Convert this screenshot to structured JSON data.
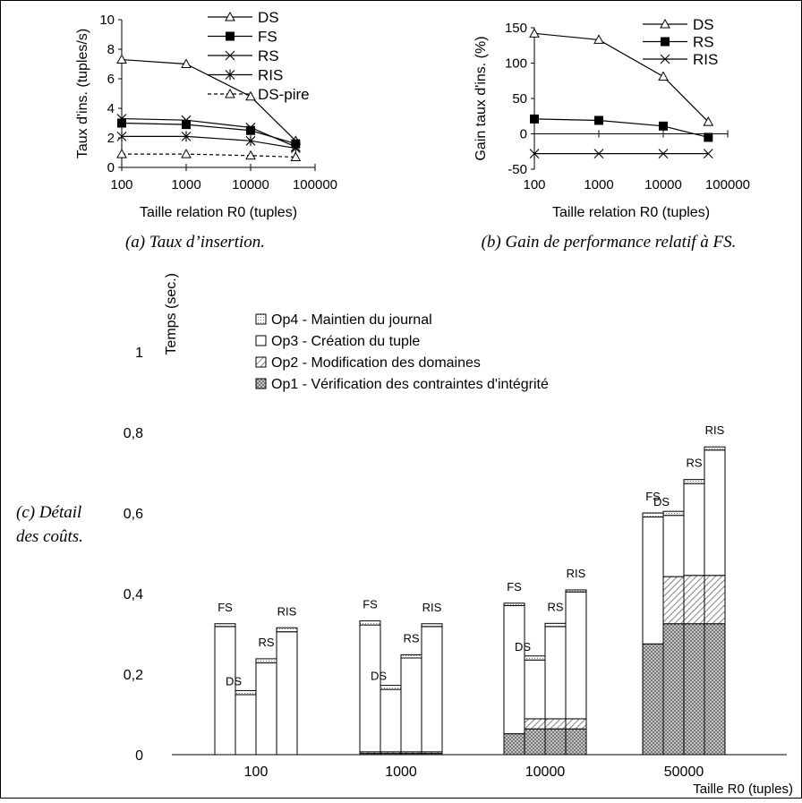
{
  "captions": {
    "a": "(a) Taux d’insertion.",
    "b": "(b) Gain de performance relatif à FS.",
    "c_line1": "(c) Détail",
    "c_line2": "des coûts."
  },
  "chart_data": [
    {
      "id": "a",
      "type": "line",
      "xlabel": "Taille relation R0 (tuples)",
      "ylabel": "Taux d'ins. (tuples/s)",
      "x": [
        100,
        1000,
        10000,
        50000
      ],
      "xticks": [
        "100",
        "1000",
        "10000",
        "100000"
      ],
      "xscale": "log",
      "xlim": [
        100,
        100000
      ],
      "ylim": [
        0,
        10
      ],
      "yticks": [
        "0",
        "2",
        "4",
        "6",
        "8",
        "10"
      ],
      "grid": false,
      "legend_position": "top-right",
      "series": [
        {
          "name": "DS",
          "marker": "triangle",
          "dash": false,
          "values": [
            7.3,
            7.0,
            4.8,
            1.8
          ]
        },
        {
          "name": "FS",
          "marker": "square",
          "dash": false,
          "values": [
            3.0,
            2.9,
            2.5,
            1.6
          ]
        },
        {
          "name": "RS",
          "marker": "x",
          "dash": false,
          "values": [
            3.3,
            3.2,
            2.7,
            1.4
          ]
        },
        {
          "name": "RIS",
          "marker": "star",
          "dash": false,
          "values": [
            2.1,
            2.1,
            1.8,
            1.3
          ]
        },
        {
          "name": "DS-pire",
          "marker": "triangle",
          "dash": true,
          "values": [
            0.9,
            0.9,
            0.8,
            0.7
          ]
        }
      ]
    },
    {
      "id": "b",
      "type": "line",
      "xlabel": "Taille relation R0 (tuples)",
      "ylabel": "Gain taux d'ins. (%)",
      "x": [
        100,
        1000,
        10000,
        50000
      ],
      "xticks": [
        "100",
        "1000",
        "10000",
        "100000"
      ],
      "xscale": "log",
      "xlim": [
        100,
        100000
      ],
      "ylim": [
        -50,
        150
      ],
      "yticks": [
        "-50",
        "0",
        "50",
        "100",
        "150"
      ],
      "grid": false,
      "legend_position": "top-right",
      "series": [
        {
          "name": "DS",
          "marker": "triangle",
          "dash": false,
          "values": [
            142,
            133,
            81,
            17
          ]
        },
        {
          "name": "RS",
          "marker": "square",
          "dash": false,
          "values": [
            21,
            19,
            11,
            -5
          ]
        },
        {
          "name": "RIS",
          "marker": "x",
          "dash": false,
          "values": [
            -28,
            -28,
            -28,
            -28
          ]
        }
      ]
    },
    {
      "id": "c",
      "type": "bar",
      "stacked": true,
      "ylabel": "Temps (sec.)",
      "xlabel": "Taille R0 (tuples)",
      "categories": [
        "100",
        "1000",
        "10000",
        "50000"
      ],
      "bar_labels": [
        "FS",
        "DS",
        "RS",
        "RIS"
      ],
      "ylim": [
        0,
        1.2
      ],
      "yticks": [
        "0",
        "0,2",
        "0,4",
        "0,6",
        "0,8",
        "1"
      ],
      "legend_position": "top",
      "series": [
        {
          "name": "Op1 - Vérification des contraintes d'intégrité",
          "pattern": "crosshatch",
          "values": [
            [
              0,
              0,
              0,
              0
            ],
            [
              0.003,
              0.003,
              0.003,
              0.003
            ],
            [
              0.052,
              0.064,
              0.064,
              0.064
            ],
            [
              0.275,
              0.325,
              0.325,
              0.325
            ]
          ]
        },
        {
          "name": "Op2 - Modification des domaines",
          "pattern": "diagonal",
          "values": [
            [
              0,
              0,
              0,
              0
            ],
            [
              0.004,
              0.004,
              0.004,
              0.004
            ],
            [
              0,
              0.025,
              0.025,
              0.025
            ],
            [
              0,
              0.117,
              0.12,
              0.12
            ]
          ]
        },
        {
          "name": "Op3 - Création du tuple",
          "pattern": "blank",
          "values": [
            [
              0.318,
              0.149,
              0.228,
              0.305
            ],
            [
              0.315,
              0.155,
              0.233,
              0.311
            ],
            [
              0.318,
              0.146,
              0.229,
              0.315
            ],
            [
              0.315,
              0.152,
              0.228,
              0.311
            ]
          ]
        },
        {
          "name": "Op4 - Maintien du journal",
          "pattern": "dots",
          "values": [
            [
              0.007,
              0.01,
              0.01,
              0.01
            ],
            [
              0.01,
              0.01,
              0.008,
              0.007
            ],
            [
              0.006,
              0.01,
              0.008,
              0.005
            ],
            [
              0.01,
              0.01,
              0.01,
              0.008
            ]
          ]
        }
      ]
    }
  ]
}
